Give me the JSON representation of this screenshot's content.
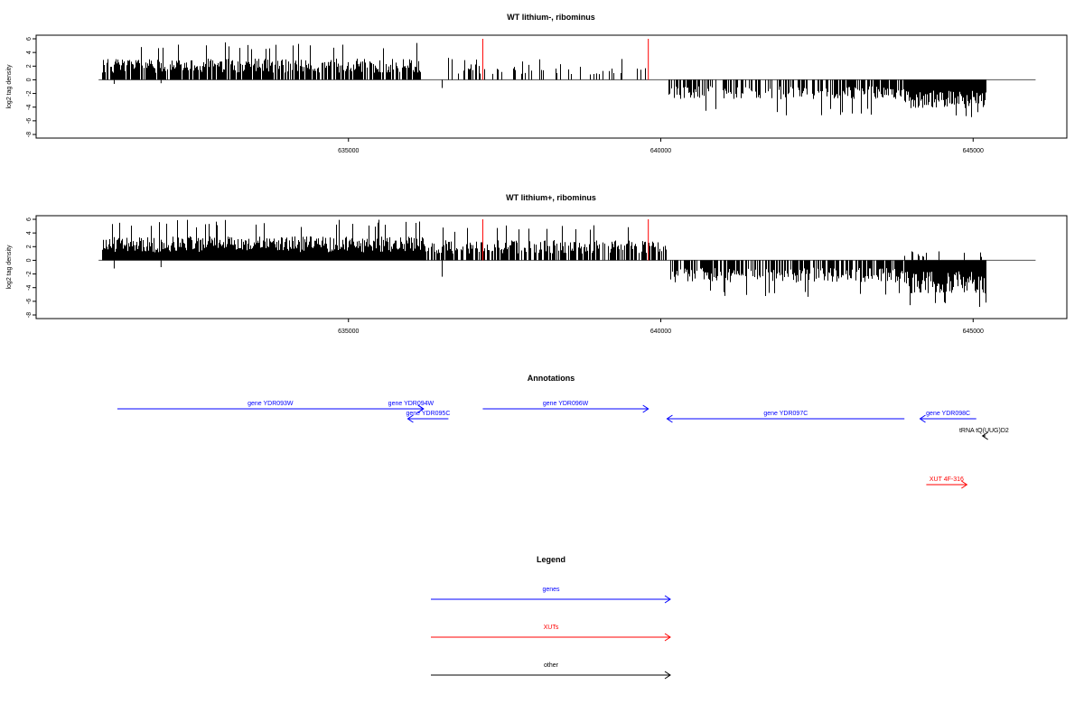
{
  "chart_data": [
    {
      "type": "bar",
      "title": "WT lithium-, ribominus",
      "xlabel": "",
      "ylabel": "log2 tag density",
      "xlim": [
        630000,
        646500
      ],
      "ylim": [
        -8,
        6
      ],
      "yticks": [
        6,
        4,
        2,
        0,
        -2,
        -4,
        -6,
        -8
      ],
      "xticks": [
        635000,
        640000,
        645000
      ],
      "xtick_labels": [
        "635000",
        "640000",
        "645000"
      ],
      "markers": {
        "color": "#ff0000",
        "positions": [
          637150,
          639800
        ]
      },
      "plus_strand": [
        {
          "from": 631050,
          "to": 636150,
          "density": 0.85,
          "typ": 2.3,
          "max": 5.5
        },
        {
          "from": 636600,
          "to": 639750,
          "density": 0.22,
          "typ": 1.7,
          "max": 3.3
        }
      ],
      "minus_strand": [
        {
          "from": 640100,
          "to": 643900,
          "density": 0.55,
          "typ": 2.1,
          "max": 5.2
        },
        {
          "from": 643900,
          "to": 645200,
          "density": 1.0,
          "typ": 3.1,
          "max": 5.8
        }
      ],
      "baseline_range": [
        631000,
        646000
      ]
    },
    {
      "type": "bar",
      "title": "WT lithium+, ribominus",
      "xlabel": "",
      "ylabel": "log2 tag density",
      "xlim": [
        630000,
        646500
      ],
      "ylim": [
        -8,
        6
      ],
      "yticks": [
        6,
        4,
        2,
        0,
        -2,
        -4,
        -6,
        -8
      ],
      "xticks": [
        635000,
        640000,
        645000
      ],
      "xtick_labels": [
        "635000",
        "640000",
        "645000"
      ],
      "markers": {
        "color": "#ff0000",
        "positions": [
          637150,
          639800
        ]
      },
      "plus_strand": [
        {
          "from": 631050,
          "to": 636200,
          "density": 1.0,
          "typ": 2.6,
          "max": 6.0
        },
        {
          "from": 636200,
          "to": 640100,
          "density": 0.7,
          "typ": 2.2,
          "max": 5.2
        },
        {
          "from": 643700,
          "to": 645150,
          "density": 0.08,
          "typ": 1.0,
          "max": 2.2
        }
      ],
      "minus_strand": [
        {
          "from": 640150,
          "to": 643900,
          "density": 0.75,
          "typ": 2.4,
          "max": 5.4
        },
        {
          "from": 643900,
          "to": 645200,
          "density": 1.0,
          "typ": 3.6,
          "max": 7.6
        }
      ],
      "baseline_range": [
        631000,
        646000
      ]
    }
  ],
  "annotations": {
    "title": "Annotations",
    "features": [
      {
        "label": "gene YDR093W",
        "from": 631300,
        "to": 636200,
        "strand": "+",
        "row": 0,
        "color": "#0000ff"
      },
      {
        "label": "gene YDR094W",
        "from": 635800,
        "to": 636200,
        "strand": "+",
        "row": 0,
        "color": "#0000ff"
      },
      {
        "label": "gene YDR095C",
        "from": 635950,
        "to": 636600,
        "strand": "-",
        "row": 1,
        "color": "#0000ff"
      },
      {
        "label": "gene YDR096W",
        "from": 637150,
        "to": 639800,
        "strand": "+",
        "row": 0,
        "color": "#0000ff"
      },
      {
        "label": "gene YDR097C",
        "from": 640100,
        "to": 643900,
        "strand": "-",
        "row": 1,
        "color": "#0000ff"
      },
      {
        "label": "gene YDR098C",
        "from": 644150,
        "to": 645050,
        "strand": "-",
        "row": 1,
        "color": "#0000ff"
      },
      {
        "label": "tRNA tQ(UUG)D2",
        "from": 645150,
        "to": 645200,
        "strand": "-",
        "row": 2,
        "color": "#000000"
      },
      {
        "label": "XUT 4F-316",
        "from": 644250,
        "to": 644900,
        "strand": "+",
        "row": 3,
        "color": "#ff0000"
      }
    ]
  },
  "legend": {
    "title": "Legend",
    "items": [
      {
        "label": "genes",
        "color": "#0000ff"
      },
      {
        "label": "XUTs",
        "color": "#ff0000"
      },
      {
        "label": "other",
        "color": "#000000"
      }
    ]
  }
}
